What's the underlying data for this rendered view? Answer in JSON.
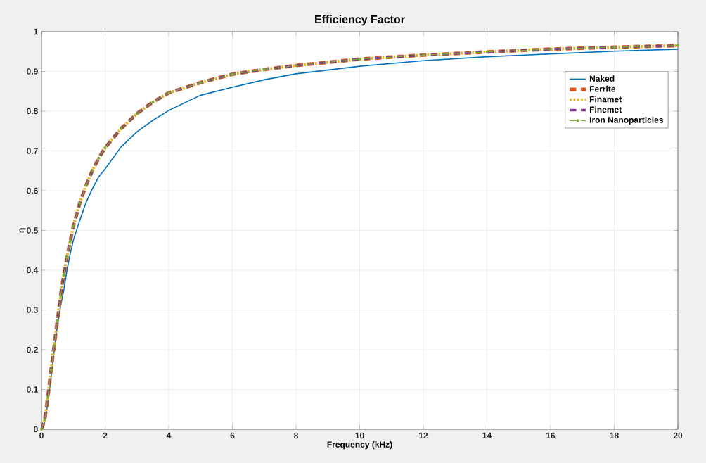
{
  "chart_data": {
    "type": "line",
    "title": "Efficiency Factor",
    "xlabel": "Frequency (kHz)",
    "ylabel": "η",
    "x": [
      0,
      0.1,
      0.2,
      0.3,
      0.4,
      0.5,
      0.6,
      0.7,
      0.8,
      0.9,
      1,
      1.2,
      1.4,
      1.6,
      1.8,
      2,
      2.5,
      3,
      3.5,
      4,
      5,
      6,
      7,
      8,
      10,
      12,
      14,
      16,
      18,
      20
    ],
    "series": [
      {
        "name": "Naked",
        "color": "#0072bd",
        "line_style": "solid",
        "marker": "none",
        "values": [
          0,
          0.018,
          0.065,
          0.13,
          0.2,
          0.26,
          0.31,
          0.35,
          0.4,
          0.44,
          0.475,
          0.525,
          0.57,
          0.605,
          0.635,
          0.655,
          0.71,
          0.748,
          0.777,
          0.802,
          0.84,
          0.86,
          0.879,
          0.894,
          0.913,
          0.927,
          0.937,
          0.944,
          0.951,
          0.956
        ]
      },
      {
        "name": "Ferrite",
        "color": "#d95319",
        "line_style": "dashed",
        "marker": "none",
        "values": [
          0,
          0.024,
          0.08,
          0.149,
          0.211,
          0.273,
          0.335,
          0.388,
          0.433,
          0.472,
          0.51,
          0.568,
          0.613,
          0.651,
          0.682,
          0.708,
          0.756,
          0.794,
          0.823,
          0.846,
          0.872,
          0.893,
          0.905,
          0.915,
          0.931,
          0.941,
          0.949,
          0.956,
          0.961,
          0.965
        ]
      },
      {
        "name": "Finamet",
        "color": "#edb120",
        "line_style": "dotted",
        "marker": "none",
        "values": [
          0,
          0.024,
          0.08,
          0.149,
          0.211,
          0.273,
          0.335,
          0.388,
          0.433,
          0.472,
          0.51,
          0.568,
          0.613,
          0.651,
          0.682,
          0.708,
          0.756,
          0.794,
          0.823,
          0.846,
          0.872,
          0.893,
          0.905,
          0.915,
          0.931,
          0.941,
          0.949,
          0.956,
          0.961,
          0.965
        ]
      },
      {
        "name": "Finemet",
        "color": "#7e2f8e",
        "line_style": "dashed",
        "marker": "none",
        "values": [
          0,
          0.024,
          0.08,
          0.149,
          0.211,
          0.273,
          0.335,
          0.388,
          0.433,
          0.472,
          0.51,
          0.568,
          0.613,
          0.651,
          0.682,
          0.708,
          0.756,
          0.794,
          0.823,
          0.846,
          0.872,
          0.893,
          0.905,
          0.915,
          0.931,
          0.941,
          0.949,
          0.956,
          0.961,
          0.965
        ]
      },
      {
        "name": "Iron Nanoparticles",
        "color": "#77ac30",
        "line_style": "dashed",
        "marker": "circle",
        "values": [
          0,
          0.024,
          0.08,
          0.149,
          0.211,
          0.273,
          0.335,
          0.388,
          0.433,
          0.472,
          0.51,
          0.568,
          0.613,
          0.651,
          0.682,
          0.708,
          0.756,
          0.794,
          0.823,
          0.846,
          0.872,
          0.893,
          0.905,
          0.915,
          0.931,
          0.941,
          0.949,
          0.956,
          0.961,
          0.965
        ]
      }
    ],
    "xlim": [
      0,
      20
    ],
    "ylim": [
      0,
      1
    ],
    "xticks": [
      0,
      2,
      4,
      6,
      8,
      10,
      12,
      14,
      16,
      18,
      20
    ],
    "yticks": [
      0,
      0.1,
      0.2,
      0.3,
      0.4,
      0.5,
      0.6,
      0.7,
      0.8,
      0.9,
      1
    ],
    "grid": true,
    "legend": "top right"
  }
}
